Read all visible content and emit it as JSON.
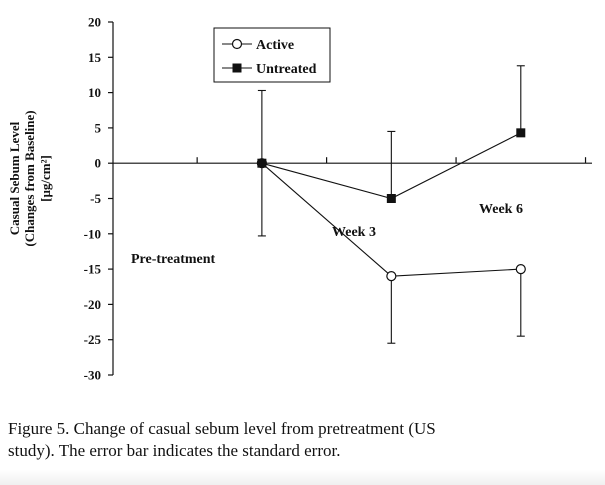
{
  "chart_data": {
    "type": "line",
    "x_positions": [
      1,
      3,
      5
    ],
    "xlim": [
      -1.3,
      6.1
    ],
    "ylim": [
      -30,
      20
    ],
    "yticks": [
      20,
      15,
      10,
      5,
      0,
      -5,
      -10,
      -15,
      -20,
      -25,
      -30
    ],
    "xticks": [
      0,
      2,
      4,
      6
    ],
    "ylabel_lines": [
      "Casual Sebum Level",
      "(Changes from Baseline)",
      "[µg/cm²]"
    ],
    "series": [
      {
        "name": "Active",
        "marker": "open-circle",
        "values": [
          0,
          -16,
          -15
        ],
        "error": [
          null,
          9.5,
          9.5
        ]
      },
      {
        "name": "Untreated",
        "marker": "filled-square",
        "values": [
          0,
          -5,
          4.3
        ],
        "error": [
          10.3,
          9.5,
          9.5
        ]
      }
    ],
    "annotations": [
      {
        "text": "Pre-treatment"
      },
      {
        "text": "Week 3"
      },
      {
        "text": "Week 6"
      }
    ]
  },
  "caption": {
    "line1": "Figure 5. Change of casual sebum level from pretreatment (US",
    "line2": "study). The error bar indicates the standard error."
  }
}
